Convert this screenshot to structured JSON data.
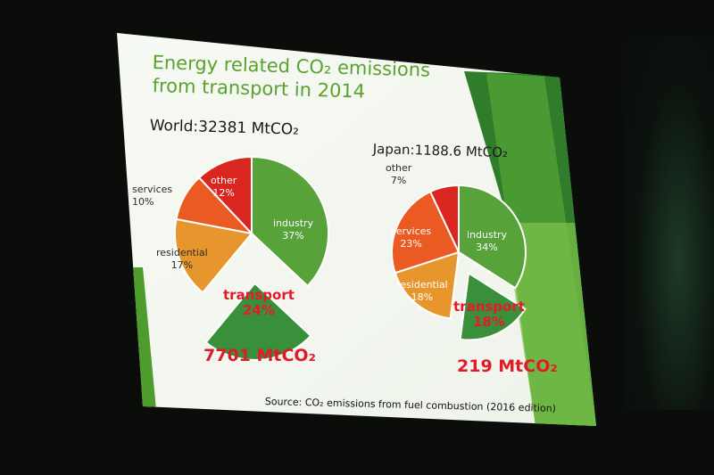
{
  "slide": {
    "title_line1": "Energy related CO₂ emissions",
    "title_line2": "from transport in 2014",
    "source": "Source: CO₂ emissions from fuel combustion (2016 edition)"
  },
  "colors": {
    "industry": "#58a23a",
    "transport": "#3a8f3a",
    "residential": "#e7962d",
    "services": "#ea5a22",
    "other": "#d9261f"
  },
  "chart_data": [
    {
      "type": "pie",
      "title": "World:32381 MtCO₂",
      "exploded": "transport",
      "exploded_total": "7701 MtCO₂",
      "slices": [
        {
          "label": "industry",
          "value": 37,
          "text": "37%"
        },
        {
          "label": "transport",
          "value": 24,
          "text": "24%"
        },
        {
          "label": "residential",
          "value": 17,
          "text": "17%"
        },
        {
          "label": "services",
          "value": 10,
          "text": "10%"
        },
        {
          "label": "other",
          "value": 12,
          "text": "12%"
        }
      ]
    },
    {
      "type": "pie",
      "title": "Japan:1188.6 MtCO₂",
      "exploded": "transport",
      "exploded_total": "219 MtCO₂",
      "slices": [
        {
          "label": "industry",
          "value": 34,
          "text": "34%"
        },
        {
          "label": "transport",
          "value": 18,
          "text": "18%"
        },
        {
          "label": "residential",
          "value": 18,
          "text": "18%"
        },
        {
          "label": "services",
          "value": 23,
          "text": "23%"
        },
        {
          "label": "other",
          "value": 7,
          "text": "7%"
        }
      ]
    }
  ]
}
